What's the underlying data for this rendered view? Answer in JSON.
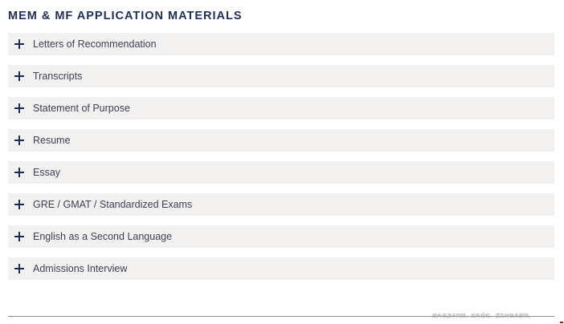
{
  "section": {
    "title": "MEM & MF APPLICATION MATERIALS"
  },
  "accordion": {
    "expand_icon": "plus-icon",
    "items": [
      {
        "label": "Letters of Recommendation",
        "expanded": false
      },
      {
        "label": "Transcripts",
        "expanded": false
      },
      {
        "label": "Statement of Purpose",
        "expanded": false
      },
      {
        "label": "Resume",
        "expanded": false
      },
      {
        "label": "Essay",
        "expanded": false
      },
      {
        "label": "GRE / GMAT / Standardized Exams",
        "expanded": false
      },
      {
        "label": "English as a Second Language",
        "expanded": false
      },
      {
        "label": "Admissions Interview",
        "expanded": false
      }
    ]
  },
  "watermark": {
    "text": "图片来源于网络，如有侵权，请及时联系删除。"
  },
  "colors": {
    "heading": "#1f2d5c",
    "item_background": "#f2f1f0",
    "item_text": "#3b3f58",
    "icon": "#1f2d5c",
    "divider": "#8d8d8d"
  }
}
